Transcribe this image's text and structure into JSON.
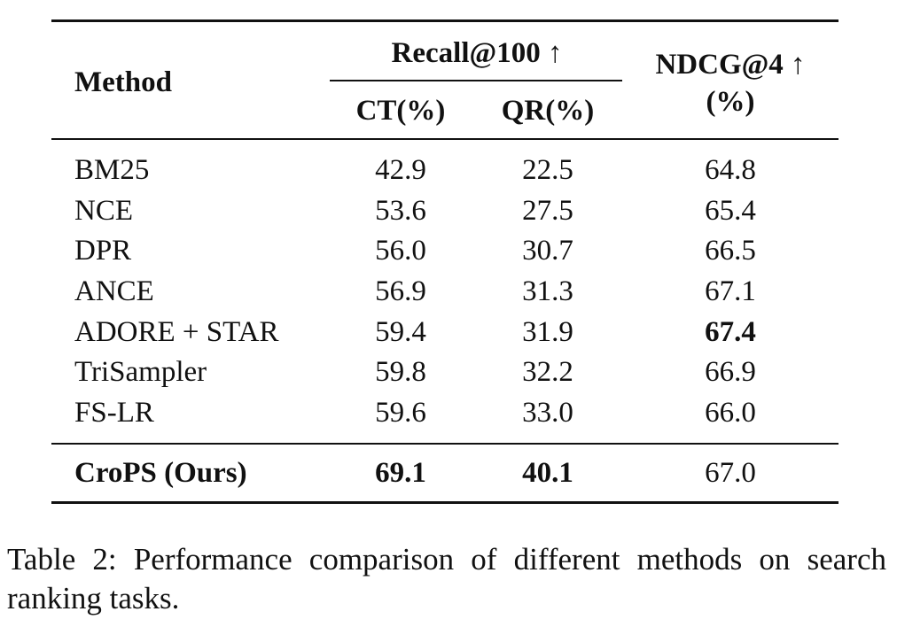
{
  "table": {
    "header": {
      "method": "Method",
      "recall_group": "Recall@100 ↑",
      "ct": "CT(%)",
      "qr": "QR(%)",
      "ndcg_line1": "NDCG@4 ↑",
      "ndcg_line2": "(%)"
    },
    "rows": [
      {
        "method": "BM25",
        "ct": "42.9",
        "qr": "22.5",
        "ndcg": "64.8"
      },
      {
        "method": "NCE",
        "ct": "53.6",
        "qr": "27.5",
        "ndcg": "65.4"
      },
      {
        "method": "DPR",
        "ct": "56.0",
        "qr": "30.7",
        "ndcg": "66.5"
      },
      {
        "method": "ANCE",
        "ct": "56.9",
        "qr": "31.3",
        "ndcg": "67.1"
      },
      {
        "method": "ADORE + STAR",
        "ct": "59.4",
        "qr": "31.9",
        "ndcg": "67.4"
      },
      {
        "method": "TriSampler",
        "ct": "59.8",
        "qr": "32.2",
        "ndcg": "66.9"
      },
      {
        "method": "FS-LR",
        "ct": "59.6",
        "qr": "33.0",
        "ndcg": "66.0"
      }
    ],
    "ours": {
      "method": "CroPS (Ours)",
      "ct": "69.1",
      "qr": "40.1",
      "ndcg": "67.0"
    }
  },
  "caption": "Table 2: Performance comparison of different methods on search ranking tasks."
}
